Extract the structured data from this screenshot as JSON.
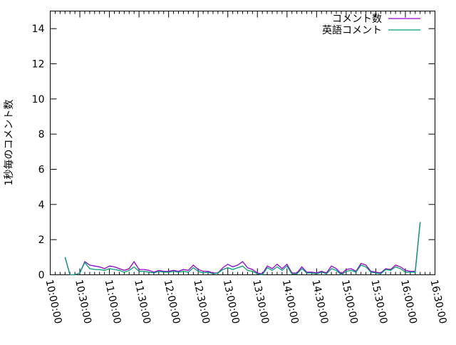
{
  "chart_data": {
    "type": "line",
    "title": "",
    "xlabel": "",
    "ylabel": "1秒毎のコメント数",
    "xlim": [
      "10:00:00",
      "16:30:00"
    ],
    "ylim": [
      0,
      15
    ],
    "grid": false,
    "legend_placement": "top-right",
    "x_ticks": [
      "10:00:00",
      "10:30:00",
      "11:00:00",
      "11:30:00",
      "12:00:00",
      "12:30:00",
      "13:00:00",
      "13:30:00",
      "14:00:00",
      "14:30:00",
      "15:00:00",
      "15:30:00",
      "16:00:00",
      "16:30:00"
    ],
    "y_ticks": [
      0,
      2,
      4,
      6,
      8,
      10,
      12,
      14
    ],
    "x": [
      "10:15",
      "10:20",
      "10:25",
      "10:30",
      "10:35",
      "10:40",
      "10:45",
      "10:50",
      "10:55",
      "11:00",
      "11:05",
      "11:10",
      "11:15",
      "11:20",
      "11:25",
      "11:30",
      "11:35",
      "11:40",
      "11:45",
      "11:50",
      "11:55",
      "12:00",
      "12:05",
      "12:10",
      "12:15",
      "12:20",
      "12:25",
      "12:30",
      "12:35",
      "12:40",
      "12:45",
      "12:50",
      "12:55",
      "13:00",
      "13:05",
      "13:10",
      "13:15",
      "13:20",
      "13:25",
      "13:30",
      "13:35",
      "13:40",
      "13:45",
      "13:50",
      "13:55",
      "14:00",
      "14:05",
      "14:10",
      "14:15",
      "14:20",
      "14:25",
      "14:30",
      "14:35",
      "14:40",
      "14:45",
      "14:50",
      "14:55",
      "15:00",
      "15:05",
      "15:10",
      "15:15",
      "15:20",
      "15:25",
      "15:30",
      "15:35",
      "15:40",
      "15:45",
      "15:50",
      "15:55",
      "16:00",
      "16:05",
      "16:10",
      "16:15"
    ],
    "series": [
      {
        "name": "コメント数",
        "color": "#9400d3",
        "values": [
          1.0,
          0,
          0,
          0.1,
          0.75,
          0.55,
          0.5,
          0.45,
          0.35,
          0.5,
          0.45,
          0.35,
          0.25,
          0.35,
          0.75,
          0.3,
          0.3,
          0.25,
          0.15,
          0.25,
          0.2,
          0.2,
          0.25,
          0.2,
          0.3,
          0.25,
          0.55,
          0.3,
          0.2,
          0.2,
          0.1,
          0.1,
          0.4,
          0.6,
          0.45,
          0.55,
          0.75,
          0.4,
          0.3,
          0.1,
          0.05,
          0.5,
          0.35,
          0.6,
          0.35,
          0.6,
          0.1,
          0.1,
          0.45,
          0.15,
          0.15,
          0.1,
          0.2,
          0.1,
          0.5,
          0.35,
          0.05,
          0.3,
          0.35,
          0.2,
          0.65,
          0.55,
          0.2,
          0.15,
          0.1,
          0.35,
          0.3,
          0.55,
          0.45,
          0.25,
          0.2,
          0.2,
          3.0
        ]
      },
      {
        "name": "英語コメント",
        "color": "#009e73",
        "values": [
          1.0,
          0,
          0,
          0.1,
          0.7,
          0.35,
          0.3,
          0.3,
          0.25,
          0.35,
          0.3,
          0.25,
          0.15,
          0.25,
          0.45,
          0.2,
          0.2,
          0.15,
          0.1,
          0.2,
          0.15,
          0.15,
          0.2,
          0.15,
          0.2,
          0.15,
          0.4,
          0.2,
          0.1,
          0.15,
          0.05,
          0.1,
          0.3,
          0.4,
          0.3,
          0.4,
          0.5,
          0.25,
          0.2,
          0.05,
          0.0,
          0.4,
          0.25,
          0.45,
          0.25,
          0.5,
          0.05,
          0.05,
          0.35,
          0.1,
          0.1,
          0.05,
          0.15,
          0.05,
          0.35,
          0.25,
          0.0,
          0.2,
          0.25,
          0.15,
          0.55,
          0.45,
          0.15,
          0.1,
          0.05,
          0.3,
          0.25,
          0.45,
          0.35,
          0.15,
          0.15,
          0.15,
          3.0
        ]
      }
    ]
  }
}
